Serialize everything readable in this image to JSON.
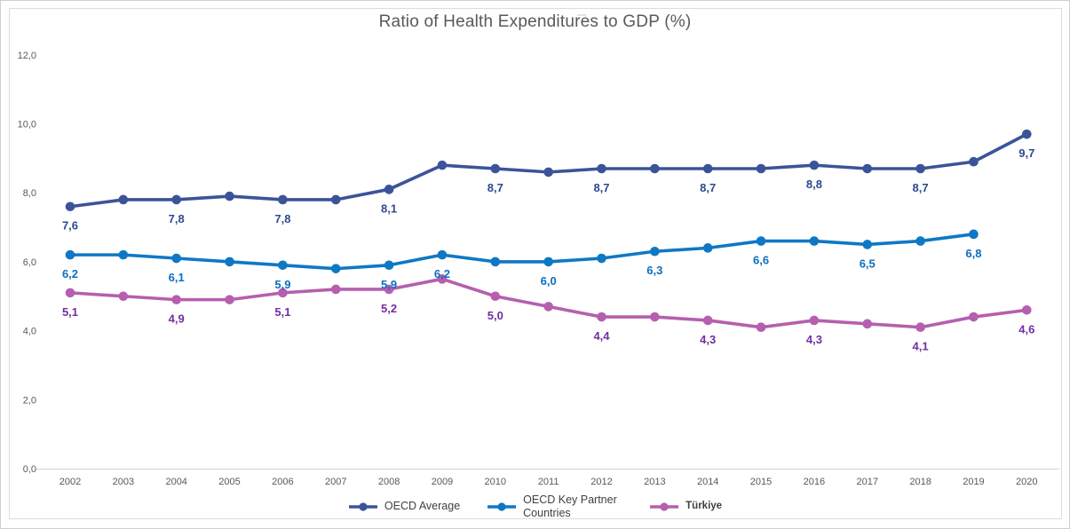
{
  "chart_data": {
    "type": "line",
    "title": "Ratio of Health Expenditures to GDP (%)",
    "xlabel": "",
    "ylabel": "",
    "ylim": [
      0,
      12
    ],
    "grid": false,
    "legend_position": "bottom-center",
    "decimal_style": "comma",
    "axis_color": "#d9d9d9",
    "tick_color": "#595959",
    "x": [
      "2002",
      "2003",
      "2004",
      "2005",
      "2006",
      "2007",
      "2008",
      "2009",
      "2010",
      "2011",
      "2012",
      "2013",
      "2014",
      "2015",
      "2016",
      "2017",
      "2018",
      "2019",
      "2020"
    ],
    "y_ticks": [
      {
        "value": 0,
        "label": "0,0"
      },
      {
        "value": 2,
        "label": "2,0"
      },
      {
        "value": 4,
        "label": "4,0"
      },
      {
        "value": 6,
        "label": "6,0"
      },
      {
        "value": 8,
        "label": "8,0"
      },
      {
        "value": 10,
        "label": "10,0"
      },
      {
        "value": 12,
        "label": "12,0"
      }
    ],
    "series": [
      {
        "id": "oecd-average",
        "name": "OECD Average",
        "color": "#3b5499",
        "label_color": "#2d4a8c",
        "values": [
          7.6,
          7.8,
          7.8,
          7.9,
          7.8,
          7.8,
          8.1,
          8.8,
          8.7,
          8.6,
          8.7,
          8.7,
          8.7,
          8.7,
          8.8,
          8.7,
          8.7,
          8.9,
          9.7
        ],
        "point_labels": [
          "7,6",
          null,
          "7,8",
          null,
          "7,8",
          null,
          "8,1",
          null,
          "8,7",
          null,
          "8,7",
          null,
          "8,7",
          null,
          "8,8",
          null,
          "8,7",
          null,
          "9,7"
        ]
      },
      {
        "id": "oecd-key-partner-countries",
        "name": "OECD Key Partner Countries",
        "color": "#0f78c4",
        "label_color": "#0b6fc0",
        "legend_wrap": true,
        "values": [
          6.2,
          6.2,
          6.1,
          6.0,
          5.9,
          5.8,
          5.9,
          6.2,
          6.0,
          6.0,
          6.1,
          6.3,
          6.4,
          6.6,
          6.6,
          6.5,
          6.6,
          6.8,
          null
        ],
        "point_labels": [
          "6,2",
          null,
          "6,1",
          null,
          "5,9",
          null,
          "5,9",
          "6,2",
          null,
          "6,0",
          null,
          "6,3",
          null,
          "6,6",
          null,
          "6,5",
          null,
          "6,8",
          null
        ]
      },
      {
        "id": "turkiye",
        "name": "Türkiye",
        "color": "#b65fae",
        "label_color": "#7030a0",
        "legend_bold": true,
        "values": [
          5.1,
          5.0,
          4.9,
          4.9,
          5.1,
          5.2,
          5.2,
          5.5,
          5.0,
          4.7,
          4.4,
          4.4,
          4.3,
          4.1,
          4.3,
          4.2,
          4.1,
          4.4,
          4.6
        ],
        "point_labels": [
          "5,1",
          null,
          "4,9",
          null,
          "5,1",
          null,
          "5,2",
          null,
          "5,0",
          null,
          "4,4",
          null,
          "4,3",
          null,
          "4,3",
          null,
          "4,1",
          null,
          "4,6"
        ]
      }
    ]
  }
}
